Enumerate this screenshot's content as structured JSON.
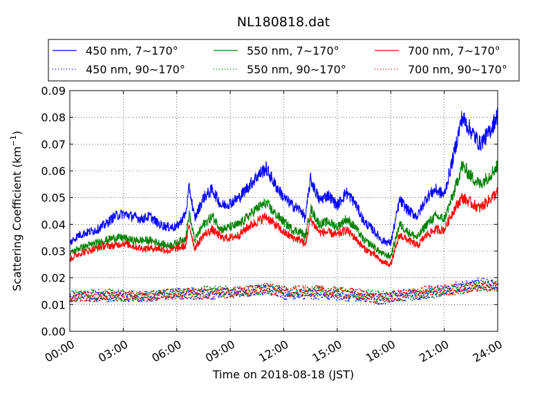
{
  "chart_data": {
    "type": "line",
    "title": "NL180818.dat",
    "xlabel": "Time on 2018-08-18 (JST)",
    "ylabel_main": "Scattering Coefficient (km",
    "ylabel_sup": "−1",
    "ylabel_close": ")",
    "xlim": [
      0,
      24
    ],
    "ylim": [
      0,
      0.09
    ],
    "grid": true,
    "legend_position": "top",
    "x_ticks": [
      0,
      3,
      6,
      9,
      12,
      15,
      18,
      21,
      24
    ],
    "x_tick_labels": [
      "00:00",
      "03:00",
      "06:00",
      "09:00",
      "12:00",
      "15:00",
      "18:00",
      "21:00",
      "24:00"
    ],
    "y_ticks": [
      0,
      0.01,
      0.02,
      0.03,
      0.04,
      0.05,
      0.06,
      0.07,
      0.08,
      0.09
    ],
    "y_tick_labels": [
      "0.00",
      "0.01",
      "0.02",
      "0.03",
      "0.04",
      "0.05",
      "0.06",
      "0.07",
      "0.08",
      "0.09"
    ],
    "x_units": "hours",
    "series": [
      {
        "name": "450 nm, 7∼170°",
        "color": "#0000ff",
        "style": "solid",
        "x": [
          0,
          0.5,
          1,
          1.5,
          2,
          2.5,
          3,
          3.5,
          4,
          4.5,
          5,
          5.5,
          6,
          6.5,
          6.7,
          7,
          7.5,
          8,
          8.5,
          9,
          9.5,
          10,
          10.5,
          11,
          11.5,
          12,
          12.5,
          13,
          13.2,
          13.5,
          14,
          14.5,
          15,
          15.5,
          16,
          16.5,
          17,
          17.5,
          18,
          18.5,
          19,
          19.5,
          20,
          20.5,
          21,
          21.5,
          22,
          22.5,
          23,
          23.5,
          24
        ],
        "y": [
          0.033,
          0.036,
          0.037,
          0.038,
          0.04,
          0.043,
          0.044,
          0.043,
          0.042,
          0.043,
          0.04,
          0.039,
          0.039,
          0.044,
          0.054,
          0.042,
          0.05,
          0.053,
          0.047,
          0.048,
          0.05,
          0.054,
          0.058,
          0.061,
          0.055,
          0.05,
          0.047,
          0.045,
          0.042,
          0.057,
          0.049,
          0.051,
          0.047,
          0.052,
          0.048,
          0.041,
          0.038,
          0.034,
          0.033,
          0.049,
          0.045,
          0.043,
          0.05,
          0.053,
          0.051,
          0.065,
          0.08,
          0.075,
          0.07,
          0.074,
          0.081
        ]
      },
      {
        "name": "550 nm, 7∼170°",
        "color": "#008000",
        "style": "solid",
        "x": [
          0,
          0.5,
          1,
          1.5,
          2,
          2.5,
          3,
          3.5,
          4,
          4.5,
          5,
          5.5,
          6,
          6.5,
          6.7,
          7,
          7.5,
          8,
          8.5,
          9,
          9.5,
          10,
          10.5,
          11,
          11.5,
          12,
          12.5,
          13,
          13.2,
          13.5,
          14,
          14.5,
          15,
          15.5,
          16,
          16.5,
          17,
          17.5,
          18,
          18.5,
          19,
          19.5,
          20,
          20.5,
          21,
          21.5,
          22,
          22.5,
          23,
          23.5,
          24
        ],
        "y": [
          0.029,
          0.031,
          0.032,
          0.033,
          0.034,
          0.035,
          0.035,
          0.034,
          0.034,
          0.034,
          0.033,
          0.032,
          0.033,
          0.035,
          0.044,
          0.034,
          0.04,
          0.043,
          0.038,
          0.039,
          0.04,
          0.043,
          0.046,
          0.048,
          0.044,
          0.041,
          0.038,
          0.037,
          0.035,
          0.046,
          0.04,
          0.041,
          0.039,
          0.042,
          0.039,
          0.034,
          0.032,
          0.029,
          0.028,
          0.04,
          0.037,
          0.035,
          0.04,
          0.043,
          0.042,
          0.051,
          0.062,
          0.058,
          0.055,
          0.058,
          0.062
        ]
      },
      {
        "name": "700 nm, 7∼170°",
        "color": "#ff0000",
        "style": "solid",
        "x": [
          0,
          0.5,
          1,
          1.5,
          2,
          2.5,
          3,
          3.5,
          4,
          4.5,
          5,
          5.5,
          6,
          6.5,
          6.7,
          7,
          7.5,
          8,
          8.5,
          9,
          9.5,
          10,
          10.5,
          11,
          11.5,
          12,
          12.5,
          13,
          13.2,
          13.5,
          14,
          14.5,
          15,
          15.5,
          16,
          16.5,
          17,
          17.5,
          18,
          18.5,
          19,
          19.5,
          20,
          20.5,
          21,
          21.5,
          22,
          22.5,
          23,
          23.5,
          24
        ],
        "y": [
          0.027,
          0.029,
          0.03,
          0.031,
          0.032,
          0.032,
          0.033,
          0.032,
          0.031,
          0.031,
          0.031,
          0.03,
          0.031,
          0.032,
          0.04,
          0.031,
          0.036,
          0.038,
          0.035,
          0.035,
          0.036,
          0.039,
          0.041,
          0.043,
          0.04,
          0.037,
          0.035,
          0.034,
          0.032,
          0.042,
          0.037,
          0.037,
          0.036,
          0.038,
          0.035,
          0.031,
          0.029,
          0.026,
          0.025,
          0.036,
          0.034,
          0.032,
          0.036,
          0.038,
          0.038,
          0.045,
          0.05,
          0.048,
          0.046,
          0.049,
          0.052
        ]
      },
      {
        "name": "450 nm, 90∼170°",
        "color": "#0000ff",
        "style": "dotted",
        "x": [
          0,
          2,
          4,
          6,
          8,
          10,
          11,
          12,
          14,
          16,
          17.5,
          18,
          20,
          22,
          23,
          24
        ],
        "y": [
          0.013,
          0.013,
          0.013,
          0.014,
          0.014,
          0.015,
          0.016,
          0.014,
          0.014,
          0.013,
          0.012,
          0.013,
          0.014,
          0.017,
          0.018,
          0.017
        ]
      },
      {
        "name": "550 nm, 90∼170°",
        "color": "#008000",
        "style": "dotted",
        "x": [
          0,
          2,
          4,
          6,
          8,
          10,
          11,
          12,
          14,
          16,
          17.5,
          18,
          20,
          22,
          23,
          24
        ],
        "y": [
          0.013,
          0.014,
          0.013,
          0.014,
          0.015,
          0.015,
          0.016,
          0.015,
          0.015,
          0.014,
          0.013,
          0.013,
          0.014,
          0.016,
          0.017,
          0.017
        ]
      },
      {
        "name": "700 nm, 90∼170°",
        "color": "#ff0000",
        "style": "dotted",
        "x": [
          0,
          2,
          4,
          6,
          8,
          10,
          11,
          12,
          14,
          16,
          17.5,
          18,
          20,
          22,
          23,
          24
        ],
        "y": [
          0.013,
          0.013,
          0.013,
          0.014,
          0.014,
          0.015,
          0.016,
          0.015,
          0.015,
          0.014,
          0.012,
          0.013,
          0.015,
          0.016,
          0.017,
          0.017
        ]
      }
    ]
  }
}
